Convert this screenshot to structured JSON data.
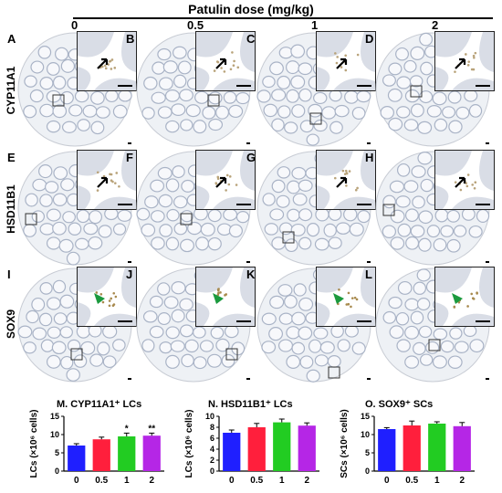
{
  "header": {
    "title": "Patulin dose  (mg/kg)",
    "doses": [
      "0",
      "0.5",
      "1",
      "2"
    ]
  },
  "rows": [
    {
      "label": "CYP11A1",
      "letters": [
        "A",
        "B",
        "C",
        "D"
      ]
    },
    {
      "label": "HSD11B1",
      "letters": [
        "E",
        "F",
        "G",
        "H"
      ]
    },
    {
      "label": "SOX9",
      "letters": [
        "I",
        "J",
        "K",
        "L"
      ]
    }
  ],
  "chart_data": [
    {
      "type": "bar",
      "title": "M. CYP11A1⁺ LCs",
      "ylabel": "LCs (×10⁶ cells)",
      "categories": [
        "0",
        "0.5",
        "1",
        "2"
      ],
      "values": [
        7.0,
        8.7,
        9.5,
        9.7
      ],
      "errors": [
        0.5,
        0.6,
        0.9,
        0.7
      ],
      "significance": [
        "",
        "",
        "*",
        "**"
      ],
      "ylim": [
        0,
        15
      ],
      "yticks": [
        0,
        5,
        10,
        15
      ],
      "colors": [
        "#1f1fff",
        "#ff1f3c",
        "#22cc22",
        "#b526e6"
      ]
    },
    {
      "type": "bar",
      "title": "N. HSD11B1⁺ LCs",
      "ylabel": "LCs (×10⁶ cells)",
      "categories": [
        "0",
        "0.5",
        "1",
        "2"
      ],
      "values": [
        7.0,
        8.0,
        8.9,
        8.3
      ],
      "errors": [
        0.5,
        0.7,
        0.6,
        0.5
      ],
      "significance": [
        "",
        "",
        "",
        ""
      ],
      "ylim": [
        0,
        10
      ],
      "yticks": [
        0,
        2,
        4,
        6,
        8,
        10
      ],
      "colors": [
        "#1f1fff",
        "#ff1f3c",
        "#22cc22",
        "#b526e6"
      ]
    },
    {
      "type": "bar",
      "title": "O. SOX9⁺ SCs",
      "ylabel": "SCs (×10⁶ cells)",
      "categories": [
        "0",
        "0.5",
        "1",
        "2"
      ],
      "values": [
        11.5,
        12.5,
        13.0,
        12.3
      ],
      "errors": [
        0.4,
        1.2,
        0.5,
        1.0
      ],
      "significance": [
        "",
        "",
        "",
        ""
      ],
      "ylim": [
        0,
        15
      ],
      "yticks": [
        0,
        5,
        10,
        15
      ],
      "colors": [
        "#1f1fff",
        "#ff1f3c",
        "#22cc22",
        "#b526e6"
      ]
    }
  ]
}
